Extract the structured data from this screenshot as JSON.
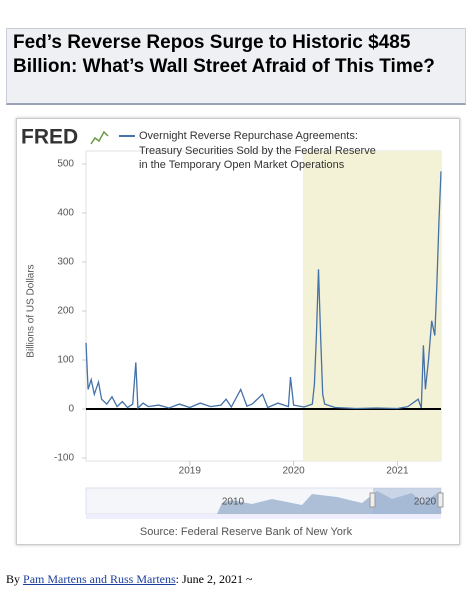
{
  "article": {
    "title": "Fed’s Reverse Repos Surge to Historic $485 Billion: What’s Wall Street Afraid of This Time?",
    "byline": {
      "prefix": "By ",
      "authors": "Pam Martens and Russ Martens",
      "suffix": ": June 2, 2021 ~"
    }
  },
  "chart_data": {
    "type": "line",
    "logo": "FRED",
    "y_label": "Billions of US Dollars",
    "source": "Source: Federal Reserve Bank of New York",
    "navigator_labels": [
      "2010",
      "2020"
    ],
    "xlim": [
      2018.0,
      2021.42
    ],
    "ylim": [
      -100,
      500
    ],
    "xticks": [
      2019,
      2020,
      2021
    ],
    "yticks": [
      -100,
      0,
      100,
      200,
      300,
      400,
      500
    ],
    "shaded_x": [
      2020.09,
      2021.42
    ],
    "shade_color": "#f4f2d6",
    "zero_line": true,
    "series": [
      {
        "name": "Overnight Reverse Repurchase Agreements: Treasury Securities Sold by the Federal Reserve in the Temporary Open Market Operations",
        "color": "#4572a7",
        "x": [
          2018.0,
          2018.02,
          2018.05,
          2018.08,
          2018.12,
          2018.15,
          2018.2,
          2018.25,
          2018.3,
          2018.35,
          2018.4,
          2018.45,
          2018.48,
          2018.5,
          2018.55,
          2018.6,
          2018.7,
          2018.8,
          2018.9,
          2019.0,
          2019.1,
          2019.2,
          2019.3,
          2019.35,
          2019.4,
          2019.49,
          2019.55,
          2019.6,
          2019.7,
          2019.75,
          2019.85,
          2019.95,
          2019.97,
          2020.0,
          2020.1,
          2020.18,
          2020.2,
          2020.22,
          2020.24,
          2020.26,
          2020.28,
          2020.3,
          2020.4,
          2020.6,
          2020.8,
          2021.0,
          2021.1,
          2021.2,
          2021.23,
          2021.25,
          2021.27,
          2021.3,
          2021.33,
          2021.36,
          2021.38,
          2021.4,
          2021.42
        ],
        "values": [
          135,
          40,
          60,
          30,
          55,
          20,
          10,
          25,
          5,
          15,
          3,
          10,
          95,
          2,
          12,
          5,
          8,
          2,
          10,
          3,
          12,
          5,
          8,
          20,
          4,
          40,
          6,
          10,
          30,
          3,
          12,
          5,
          65,
          8,
          4,
          10,
          50,
          150,
          285,
          150,
          30,
          10,
          3,
          1,
          2,
          1,
          5,
          20,
          2,
          130,
          40,
          100,
          180,
          150,
          250,
          380,
          485
        ]
      }
    ]
  }
}
